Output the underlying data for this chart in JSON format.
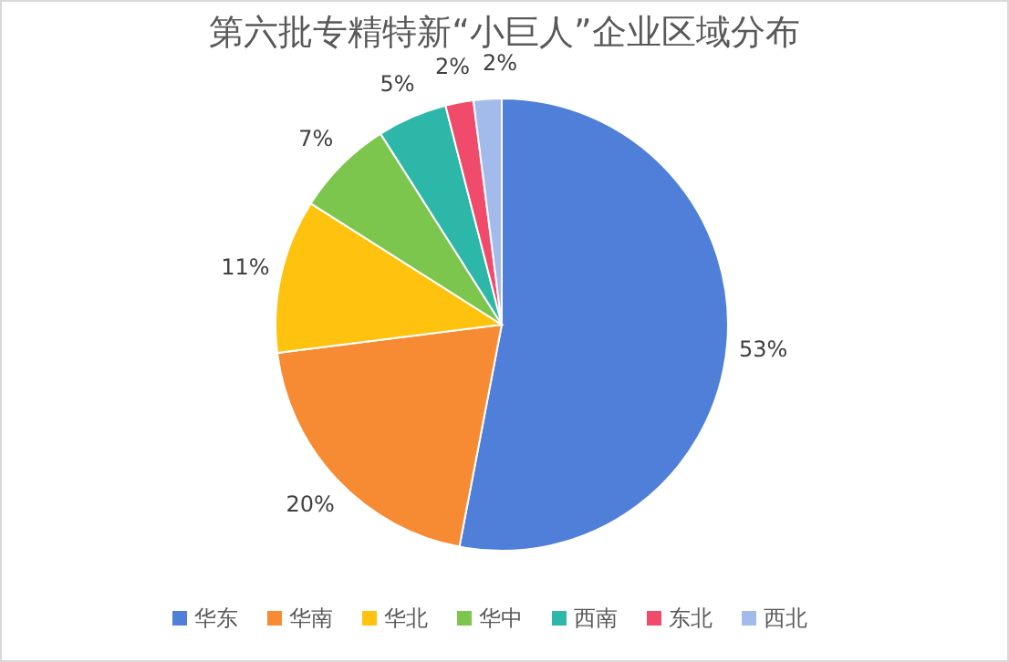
{
  "chart_data": {
    "type": "pie",
    "title": "第六批专精特新“小巨人”企业区域分布",
    "categories": [
      "华东",
      "华南",
      "华北",
      "华中",
      "西南",
      "东北",
      "西北"
    ],
    "values": [
      53,
      20,
      11,
      7,
      5,
      2,
      2
    ],
    "colors": [
      "#4f7fd8",
      "#f68b33",
      "#ffc20e",
      "#7cc64e",
      "#2db7a8",
      "#f04b6a",
      "#a3bbea"
    ],
    "value_labels": [
      "53%",
      "20%",
      "11%",
      "7%",
      "5%",
      "2%",
      "2%"
    ],
    "legend": "bottom"
  }
}
